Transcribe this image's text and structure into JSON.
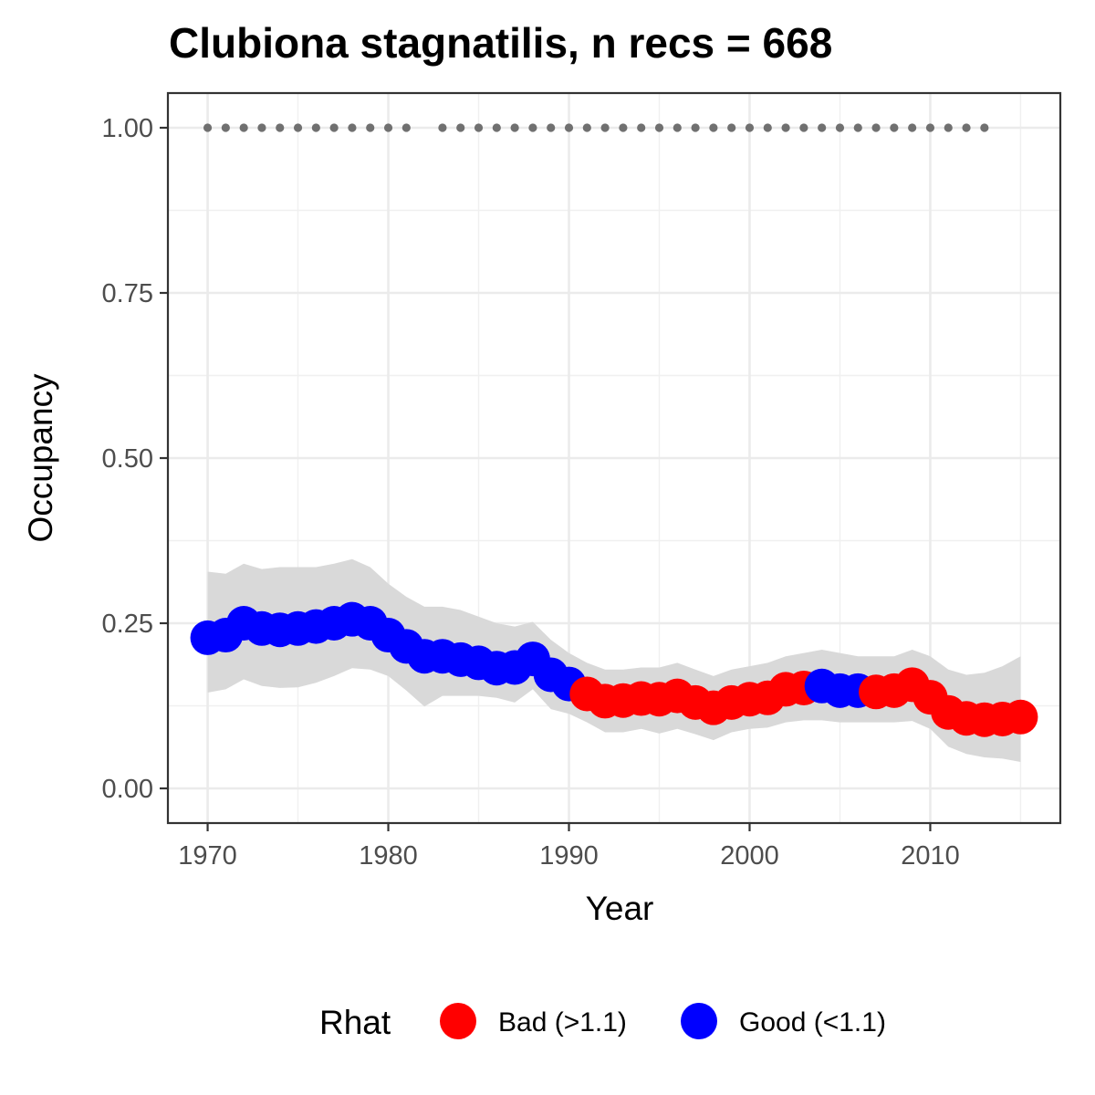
{
  "chart_data": {
    "type": "line",
    "title": "Clubiona stagnatilis, n recs = 668",
    "xlabel": "Year",
    "ylabel": "Occupancy",
    "xlim": [
      1967.8,
      2017.2
    ],
    "ylim": [
      -0.0525,
      1.0525
    ],
    "x_ticks": [
      1970,
      1980,
      1990,
      2000,
      2010
    ],
    "x_tick_labels": [
      "1970",
      "1980",
      "1990",
      "2000",
      "2010"
    ],
    "y_ticks": [
      0,
      0.25,
      0.5,
      0.75,
      1.0
    ],
    "y_tick_labels": [
      "0.00",
      "0.25",
      "0.50",
      "0.75",
      "1.00"
    ],
    "grid": true,
    "legend": {
      "title": "Rhat",
      "position": "bottom",
      "entries": [
        {
          "label": "Bad (>1.1)",
          "color": "#ff0000"
        },
        {
          "label": "Good (<1.1)",
          "color": "#0000ff"
        }
      ]
    },
    "colors": {
      "bad": "#ff0000",
      "good": "#0000ff",
      "ribbon": "#d9d9d9",
      "records": "#707070"
    },
    "years": [
      1970,
      1971,
      1972,
      1973,
      1974,
      1975,
      1976,
      1977,
      1978,
      1979,
      1980,
      1981,
      1982,
      1983,
      1984,
      1985,
      1986,
      1987,
      1988,
      1989,
      1990,
      1991,
      1992,
      1993,
      1994,
      1995,
      1996,
      1997,
      1998,
      1999,
      2000,
      2001,
      2002,
      2003,
      2004,
      2005,
      2006,
      2007,
      2008,
      2009,
      2010,
      2011,
      2012,
      2013,
      2014,
      2015
    ],
    "occupancy": [
      0.228,
      0.232,
      0.25,
      0.242,
      0.24,
      0.242,
      0.245,
      0.25,
      0.256,
      0.25,
      0.232,
      0.215,
      0.2,
      0.2,
      0.195,
      0.19,
      0.182,
      0.183,
      0.196,
      0.172,
      0.158,
      0.143,
      0.132,
      0.133,
      0.136,
      0.135,
      0.14,
      0.13,
      0.122,
      0.13,
      0.135,
      0.137,
      0.15,
      0.152,
      0.155,
      0.148,
      0.148,
      0.146,
      0.148,
      0.157,
      0.138,
      0.115,
      0.106,
      0.104,
      0.105,
      0.108
    ],
    "lower": [
      0.145,
      0.15,
      0.165,
      0.155,
      0.152,
      0.153,
      0.16,
      0.17,
      0.182,
      0.18,
      0.17,
      0.148,
      0.124,
      0.14,
      0.14,
      0.14,
      0.137,
      0.13,
      0.15,
      0.12,
      0.113,
      0.1,
      0.085,
      0.085,
      0.09,
      0.083,
      0.09,
      0.082,
      0.073,
      0.085,
      0.09,
      0.092,
      0.1,
      0.103,
      0.103,
      0.1,
      0.1,
      0.1,
      0.1,
      0.102,
      0.09,
      0.063,
      0.052,
      0.047,
      0.045,
      0.04
    ],
    "upper": [
      0.328,
      0.325,
      0.34,
      0.332,
      0.335,
      0.335,
      0.335,
      0.34,
      0.347,
      0.335,
      0.31,
      0.29,
      0.275,
      0.275,
      0.27,
      0.26,
      0.25,
      0.245,
      0.252,
      0.225,
      0.205,
      0.19,
      0.18,
      0.18,
      0.183,
      0.183,
      0.19,
      0.18,
      0.17,
      0.18,
      0.185,
      0.19,
      0.2,
      0.205,
      0.21,
      0.205,
      0.2,
      0.2,
      0.2,
      0.21,
      0.2,
      0.18,
      0.172,
      0.175,
      0.185,
      0.2
    ],
    "rhat": [
      "good",
      "good",
      "good",
      "good",
      "good",
      "good",
      "good",
      "good",
      "good",
      "good",
      "good",
      "good",
      "good",
      "good",
      "good",
      "good",
      "good",
      "good",
      "good",
      "good",
      "good",
      "bad",
      "bad",
      "bad",
      "bad",
      "bad",
      "bad",
      "bad",
      "bad",
      "bad",
      "bad",
      "bad",
      "bad",
      "bad",
      "good",
      "good",
      "good",
      "bad",
      "bad",
      "bad",
      "bad",
      "bad",
      "bad",
      "bad",
      "bad",
      "bad"
    ],
    "record_years": [
      1970,
      1971,
      1972,
      1973,
      1974,
      1975,
      1976,
      1977,
      1978,
      1979,
      1980,
      1981,
      1983,
      1984,
      1985,
      1986,
      1987,
      1988,
      1989,
      1990,
      1991,
      1992,
      1993,
      1994,
      1995,
      1996,
      1997,
      1998,
      1999,
      2000,
      2001,
      2002,
      2003,
      2004,
      2005,
      2006,
      2007,
      2008,
      2009,
      2010,
      2011,
      2012,
      2013
    ],
    "record_value": 1.0
  }
}
